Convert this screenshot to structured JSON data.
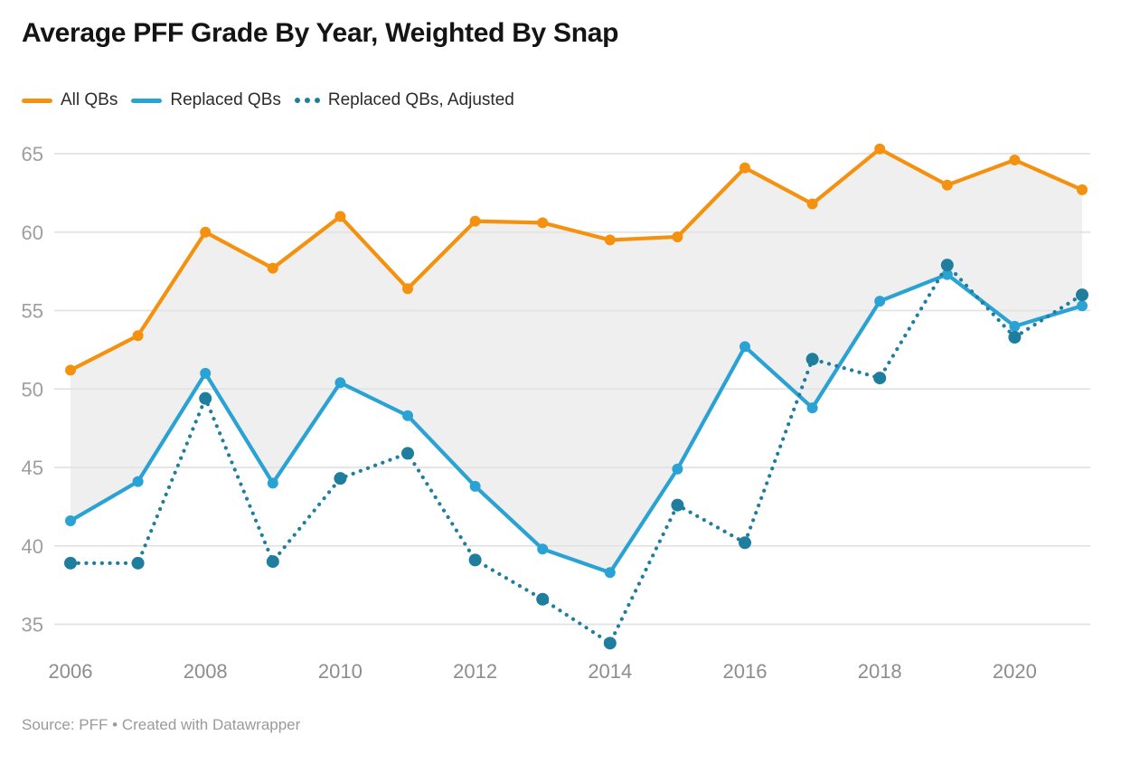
{
  "title": "Average PFF Grade By Year, Weighted By Snap",
  "legend": {
    "items": [
      {
        "label": "All QBs",
        "color": "#F4920F",
        "style": "solid"
      },
      {
        "label": "Replaced QBs",
        "color": "#2AA3D4",
        "style": "solid"
      },
      {
        "label": "Replaced QBs, Adjusted",
        "color": "#1F7D9E",
        "style": "dotted"
      }
    ]
  },
  "footer": {
    "text": "Source: PFF • Created with Datawrapper"
  },
  "colors": {
    "all_qbs": "#F4920F",
    "replaced_qbs": "#2AA3D4",
    "replaced_qbs_adjusted": "#1F7D9E",
    "band_fill": "#EFEFEF",
    "gridline": "#E2E2E2"
  },
  "chart_data": {
    "type": "line",
    "title": "Average PFF Grade By Year, Weighted By Snap",
    "x": [
      2006,
      2007,
      2008,
      2009,
      2010,
      2011,
      2012,
      2013,
      2014,
      2015,
      2016,
      2017,
      2018,
      2019,
      2020,
      2021
    ],
    "xticks": [
      2006,
      2008,
      2010,
      2012,
      2014,
      2016,
      2018,
      2020
    ],
    "yticks": [
      35,
      40,
      45,
      50,
      55,
      60,
      65
    ],
    "ylim": [
      33,
      66.5
    ],
    "grid": true,
    "legend_position": "top",
    "fill_between": {
      "upper": "All QBs",
      "lower": "Replaced QBs",
      "color": "#EFEFEF"
    },
    "series": [
      {
        "name": "All QBs",
        "style": "solid",
        "color": "#F4920F",
        "values": [
          51.2,
          53.4,
          60.0,
          57.7,
          61.0,
          56.4,
          60.7,
          60.6,
          59.5,
          59.7,
          64.1,
          61.8,
          65.3,
          63.0,
          64.6,
          62.7
        ]
      },
      {
        "name": "Replaced QBs",
        "style": "solid",
        "color": "#2AA3D4",
        "values": [
          41.6,
          44.1,
          51.0,
          44.0,
          50.4,
          48.3,
          43.8,
          39.8,
          38.3,
          44.9,
          52.7,
          48.8,
          55.6,
          57.3,
          54.0,
          55.3
        ]
      },
      {
        "name": "Replaced QBs, Adjusted",
        "style": "dotted",
        "color": "#1F7D9E",
        "values": [
          38.9,
          38.9,
          49.4,
          39.0,
          44.3,
          45.9,
          39.1,
          36.6,
          33.8,
          42.6,
          40.2,
          51.9,
          50.7,
          57.9,
          53.3,
          56.0
        ]
      }
    ]
  }
}
